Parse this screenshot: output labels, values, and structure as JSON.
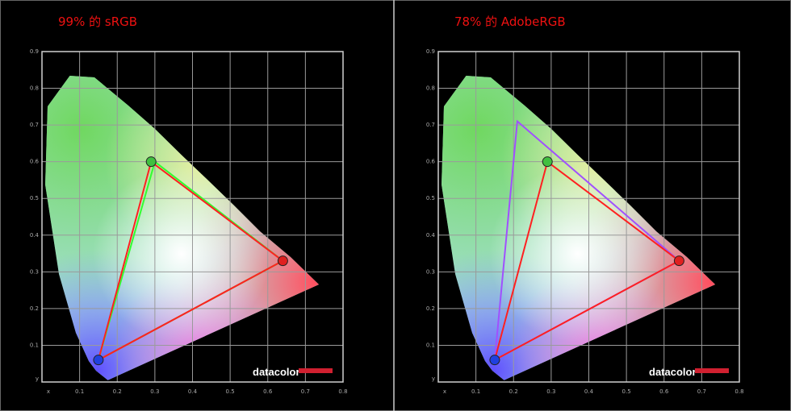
{
  "chart_data": [
    {
      "type": "line",
      "title": "99% 的 sRGB",
      "xlabel": "x",
      "ylabel": "y",
      "watermark": "datacolor",
      "xlim": [
        0,
        0.8
      ],
      "ylim": [
        0,
        0.9
      ],
      "xticks": [
        0.1,
        0.2,
        0.3,
        0.4,
        0.5,
        0.6,
        0.7,
        0.8
      ],
      "yticks": [
        0.1,
        0.2,
        0.3,
        0.4,
        0.5,
        0.6,
        0.7,
        0.8,
        0.9
      ],
      "series": [
        {
          "color": "#ff2020",
          "x": [
            0.64,
            0.29,
            0.15
          ],
          "values": [
            0.33,
            0.6,
            0.06
          ],
          "marker_colors": [
            "#e02020",
            "#40c040",
            "#2040e0"
          ]
        },
        {
          "color": "#30ff30",
          "x": [
            0.64,
            0.3,
            0.15
          ],
          "values": [
            0.33,
            0.6,
            0.06
          ]
        }
      ]
    },
    {
      "type": "line",
      "title": "78% 的 AdobeRGB",
      "xlabel": "x",
      "ylabel": "y",
      "watermark": "datacolor",
      "xlim": [
        0,
        0.8
      ],
      "ylim": [
        0,
        0.9
      ],
      "xticks": [
        0.1,
        0.2,
        0.3,
        0.4,
        0.5,
        0.6,
        0.7,
        0.8
      ],
      "yticks": [
        0.1,
        0.2,
        0.3,
        0.4,
        0.5,
        0.6,
        0.7,
        0.8,
        0.9
      ],
      "series": [
        {
          "color": "#ff2020",
          "x": [
            0.64,
            0.29,
            0.15
          ],
          "values": [
            0.33,
            0.6,
            0.06
          ],
          "marker_colors": [
            "#e02020",
            "#40c040",
            "#2040e0"
          ]
        },
        {
          "color": "#a050ff",
          "x": [
            0.64,
            0.21,
            0.15
          ],
          "values": [
            0.33,
            0.71,
            0.06
          ]
        }
      ]
    }
  ]
}
